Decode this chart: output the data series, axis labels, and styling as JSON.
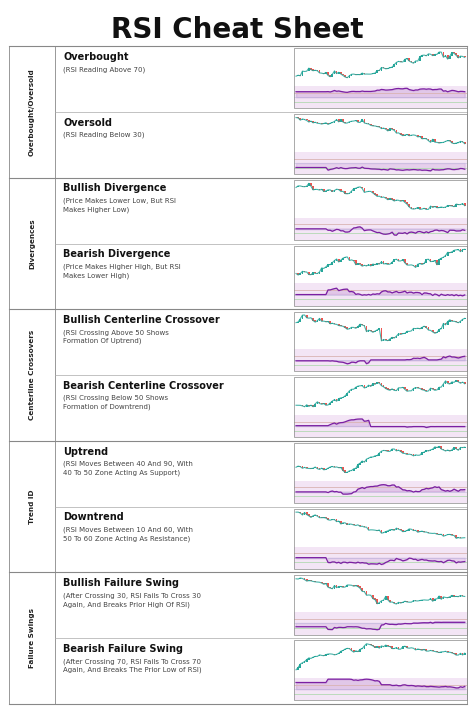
{
  "title": "RSI Cheat Sheet",
  "background_color": "#FFFFFF",
  "title_color": "#111111",
  "title_fontsize": 20,
  "section_groups": [
    {
      "group_label": "Overbought/Oversold",
      "rows": [
        {
          "heading": "Overbought",
          "desc": "(RSI Reading Above 70)"
        },
        {
          "heading": "Oversold",
          "desc": "(RSI Reading Below 30)"
        }
      ]
    },
    {
      "group_label": "Divergences",
      "rows": [
        {
          "heading": "Bullish Divergence",
          "desc": "(Price Makes Lower Low, But RSI\nMakes Higher Low)"
        },
        {
          "heading": "Bearish Divergence",
          "desc": "(Price Makes Higher High, But RSI\nMakes Lower High)"
        }
      ]
    },
    {
      "group_label": "Centerline Crossovers",
      "rows": [
        {
          "heading": "Bullish Centerline Crossover",
          "desc": "(RSI Crossing Above 50 Shows\nFormation Of Uptrend)"
        },
        {
          "heading": "Bearish Centerline Crossover",
          "desc": "(RSI Crossing Below 50 Shows\nFormation of Downtrend)"
        }
      ]
    },
    {
      "group_label": "Trend ID",
      "rows": [
        {
          "heading": "Uptrend",
          "desc": "(RSI Moves Between 40 And 90, With\n40 To 50 Zone Acting As Support)"
        },
        {
          "heading": "Downtrend",
          "desc": "(RSI Moves Between 10 And 60, With\n50 To 60 Zone Acting As Resistance)"
        }
      ]
    },
    {
      "group_label": "Failure Swings",
      "rows": [
        {
          "heading": "Bullish Failure Swing",
          "desc": "(After Crossing 30, RSI Fails To Cross 30\nAgain, And Breaks Prior High Of RSI)"
        },
        {
          "heading": "Bearish Failure Swing",
          "desc": "(After Crossing 70, RSI Fails To Cross 70\nAgain, And Breaks The Prior Low of RSI)"
        }
      ]
    }
  ],
  "chart_bg": "#FFFFFF",
  "price_color_up": "#26a69a",
  "price_color_down": "#ef5350",
  "rsi_line_color": "#7b1fa2",
  "rsi_bg": "#f3e5f5",
  "bar_color_green": "#26a69a",
  "bar_color_red": "#ef5350"
}
